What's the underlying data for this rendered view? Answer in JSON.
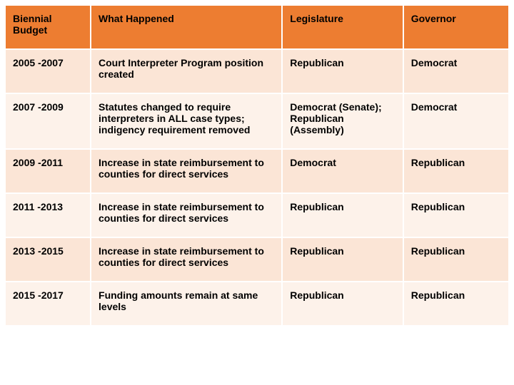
{
  "table": {
    "columns": [
      "Biennial Budget",
      "What Happened",
      "Legislature",
      "Governor"
    ],
    "header_bg": "#ed7d31",
    "band_colors": [
      "#fbe5d6",
      "#fdf2ea"
    ],
    "border_color": "#ffffff",
    "font_size": 14,
    "font_weight": "bold",
    "col_widths_pct": [
      17,
      38,
      24,
      21
    ],
    "rows": [
      [
        "2005 -2007",
        "Court Interpreter Program position created",
        "Republican",
        "Democrat"
      ],
      [
        "2007 -2009",
        "Statutes changed to require interpreters in ALL case types; indigency requirement removed",
        "Democrat (Senate); Republican (Assembly)",
        "Democrat"
      ],
      [
        "2009 -2011",
        "Increase in state reimbursement to counties for direct services",
        "Democrat",
        "Republican"
      ],
      [
        "2011 -2013",
        "Increase in state reimbursement to counties for direct services",
        "Republican",
        "Republican"
      ],
      [
        "2013 -2015",
        "Increase in state reimbursement to counties for direct services",
        "Republican",
        "Republican"
      ],
      [
        "2015 -2017",
        "Funding  amounts remain at same levels",
        "Republican",
        "Republican"
      ]
    ]
  }
}
